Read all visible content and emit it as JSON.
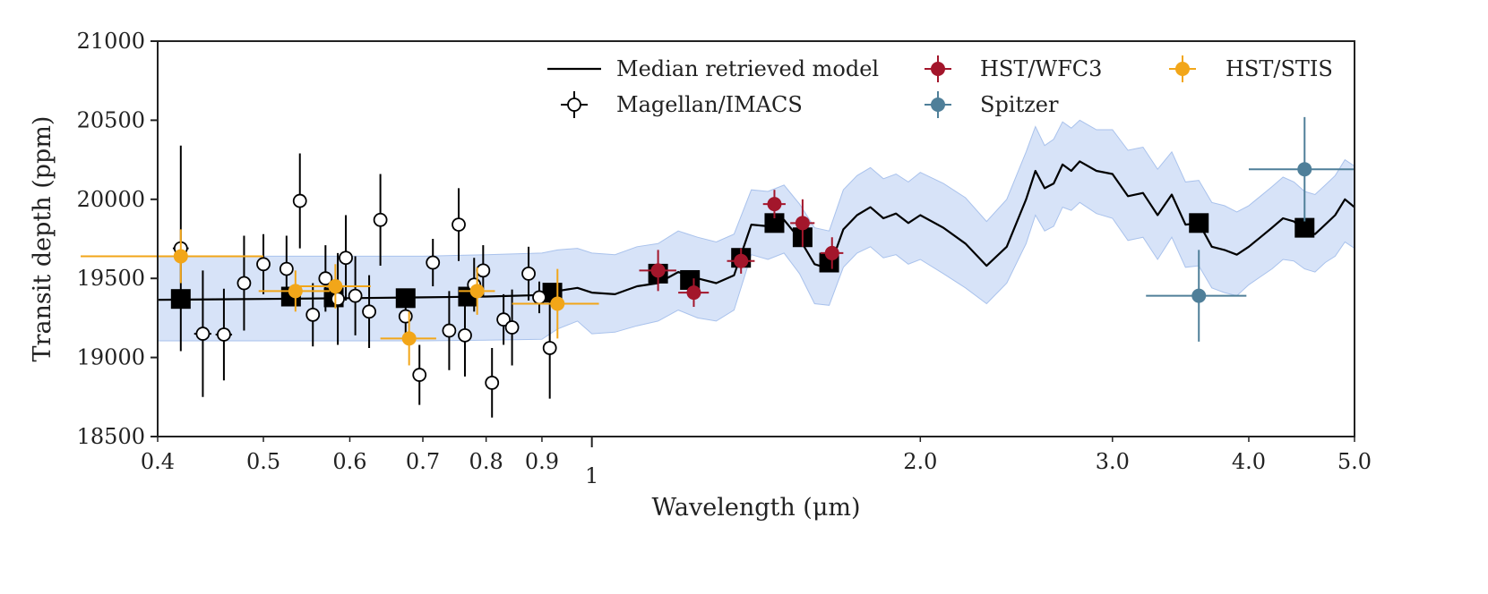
{
  "chart_data": {
    "type": "scatter",
    "xlabel": "Wavelength (μm)",
    "ylabel": "Transit depth (ppm)",
    "xscale": "log",
    "xlim": [
      0.4,
      5.0
    ],
    "ylim": [
      18500,
      21000
    ],
    "xticks": [
      {
        "value": 0.4,
        "label": "0.4"
      },
      {
        "value": 0.5,
        "label": "0.5"
      },
      {
        "value": 0.6,
        "label": "0.6"
      },
      {
        "value": 0.7,
        "label": "0.7"
      },
      {
        "value": 0.8,
        "label": "0.8"
      },
      {
        "value": 0.9,
        "label": "0.9"
      },
      {
        "value": 2.0,
        "label": "2.0"
      },
      {
        "value": 3.0,
        "label": "3.0"
      },
      {
        "value": 4.0,
        "label": "4.0"
      },
      {
        "value": 5.0,
        "label": "5.0"
      }
    ],
    "xticks_major": [
      {
        "value": 1.0,
        "label": "1"
      }
    ],
    "yticks": [
      18500,
      19000,
      19500,
      20000,
      20500,
      21000
    ],
    "legend": {
      "position": "top",
      "entries": [
        {
          "label": "Median retrieved model",
          "style": "line",
          "color": "#000000"
        },
        {
          "label": "Magellan/IMACS",
          "style": "open-circle",
          "color": "#000000"
        },
        {
          "label": "HST/WFC3",
          "style": "errorbar-dot",
          "color": "#a3162b"
        },
        {
          "label": "Spitzer",
          "style": "errorbar-dot",
          "color": "#4f7f99"
        },
        {
          "label": "HST/STIS",
          "style": "errorbar-dot",
          "color": "#f2a619"
        }
      ]
    },
    "model_line": {
      "name": "Median retrieved model",
      "color": "#000000",
      "x": [
        0.4,
        0.5,
        0.6,
        0.7,
        0.8,
        0.9,
        0.93,
        0.97,
        1.0,
        1.05,
        1.1,
        1.15,
        1.2,
        1.25,
        1.3,
        1.35,
        1.4,
        1.45,
        1.5,
        1.55,
        1.6,
        1.65,
        1.7,
        1.75,
        1.8,
        1.85,
        1.9,
        1.95,
        2.0,
        2.1,
        2.2,
        2.3,
        2.4,
        2.5,
        2.55,
        2.6,
        2.65,
        2.7,
        2.75,
        2.8,
        2.9,
        3.0,
        3.1,
        3.2,
        3.3,
        3.4,
        3.5,
        3.6,
        3.7,
        3.8,
        3.9,
        4.0,
        4.1,
        4.2,
        4.3,
        4.4,
        4.5,
        4.6,
        4.7,
        4.8,
        4.9,
        5.0
      ],
      "y": [
        19365,
        19370,
        19375,
        19380,
        19385,
        19395,
        19420,
        19440,
        19410,
        19400,
        19450,
        19470,
        19540,
        19500,
        19470,
        19520,
        19840,
        19830,
        19870,
        19750,
        19590,
        19560,
        19810,
        19900,
        19950,
        19880,
        19910,
        19850,
        19900,
        19820,
        19720,
        19580,
        19700,
        20000,
        20180,
        20070,
        20100,
        20220,
        20180,
        20240,
        20180,
        20160,
        20020,
        20040,
        19900,
        20030,
        19840,
        19850,
        19700,
        19680,
        19650,
        19700,
        19760,
        19820,
        19880,
        19860,
        19800,
        19780,
        19840,
        19900,
        20000,
        19950
      ]
    },
    "model_band": {
      "name": "Model 1-sigma range",
      "color": "#c9d9f5",
      "x": [
        0.4,
        0.5,
        0.6,
        0.7,
        0.8,
        0.9,
        0.93,
        0.97,
        1.0,
        1.05,
        1.1,
        1.15,
        1.2,
        1.25,
        1.3,
        1.35,
        1.4,
        1.45,
        1.5,
        1.55,
        1.6,
        1.65,
        1.7,
        1.75,
        1.8,
        1.85,
        1.9,
        1.95,
        2.0,
        2.1,
        2.2,
        2.3,
        2.4,
        2.5,
        2.55,
        2.6,
        2.65,
        2.7,
        2.75,
        2.8,
        2.9,
        3.0,
        3.1,
        3.2,
        3.3,
        3.4,
        3.5,
        3.6,
        3.7,
        3.8,
        3.9,
        4.0,
        4.1,
        4.2,
        4.3,
        4.4,
        4.5,
        4.6,
        4.7,
        4.8,
        4.9,
        5.0
      ],
      "lower": [
        19105,
        19105,
        19105,
        19105,
        19110,
        19115,
        19180,
        19230,
        19150,
        19160,
        19200,
        19230,
        19300,
        19250,
        19230,
        19300,
        19650,
        19620,
        19660,
        19530,
        19340,
        19330,
        19570,
        19660,
        19700,
        19630,
        19650,
        19590,
        19620,
        19530,
        19440,
        19340,
        19470,
        19720,
        19900,
        19800,
        19830,
        19950,
        19930,
        19980,
        19910,
        19880,
        19740,
        19760,
        19620,
        19760,
        19570,
        19580,
        19440,
        19410,
        19390,
        19460,
        19510,
        19560,
        19620,
        19610,
        19560,
        19540,
        19600,
        19640,
        19730,
        19690
      ],
      "upper": [
        19640,
        19640,
        19640,
        19640,
        19650,
        19660,
        19680,
        19690,
        19660,
        19650,
        19700,
        19720,
        19800,
        19760,
        19730,
        19780,
        20060,
        20050,
        20090,
        19970,
        19820,
        19800,
        20060,
        20150,
        20200,
        20130,
        20160,
        20110,
        20170,
        20100,
        20010,
        19860,
        20000,
        20300,
        20460,
        20340,
        20380,
        20490,
        20450,
        20500,
        20440,
        20440,
        20310,
        20330,
        20190,
        20300,
        20110,
        20120,
        19980,
        19960,
        19920,
        19960,
        20020,
        20080,
        20140,
        20110,
        20050,
        20030,
        20090,
        20150,
        20250,
        20210
      ]
    },
    "binned_model": {
      "name": "Binned model",
      "color": "#000000",
      "points": [
        {
          "x": 0.42,
          "y": 19370
        },
        {
          "x": 0.53,
          "y": 19385
        },
        {
          "x": 0.58,
          "y": 19380
        },
        {
          "x": 0.675,
          "y": 19375
        },
        {
          "x": 0.77,
          "y": 19385
        },
        {
          "x": 0.92,
          "y": 19410
        },
        {
          "x": 1.15,
          "y": 19530
        },
        {
          "x": 1.23,
          "y": 19490
        },
        {
          "x": 1.37,
          "y": 19630
        },
        {
          "x": 1.47,
          "y": 19850
        },
        {
          "x": 1.56,
          "y": 19760
        },
        {
          "x": 1.65,
          "y": 19600
        },
        {
          "x": 3.6,
          "y": 19850
        },
        {
          "x": 4.5,
          "y": 19820
        }
      ]
    },
    "series": [
      {
        "name": "Magellan/IMACS",
        "color": "#000000",
        "marker": "open-circle",
        "points": [
          {
            "x": 0.42,
            "y": 19690,
            "xerr": 0.007,
            "yerr": 650
          },
          {
            "x": 0.44,
            "y": 19150,
            "xerr": 0.008,
            "yerr": 400
          },
          {
            "x": 0.46,
            "y": 19145,
            "xerr": 0.008,
            "yerr": 290
          },
          {
            "x": 0.48,
            "y": 19470,
            "xerr": 0.004,
            "yerr": 300
          },
          {
            "x": 0.5,
            "y": 19590,
            "xerr": 0.004,
            "yerr": 190
          },
          {
            "x": 0.525,
            "y": 19560,
            "xerr": 0.004,
            "yerr": 210
          },
          {
            "x": 0.54,
            "y": 19990,
            "xerr": 0.004,
            "yerr": 300
          },
          {
            "x": 0.555,
            "y": 19270,
            "xerr": 0.004,
            "yerr": 200
          },
          {
            "x": 0.57,
            "y": 19500,
            "xerr": 0.004,
            "yerr": 210
          },
          {
            "x": 0.585,
            "y": 19370,
            "xerr": 0.004,
            "yerr": 290
          },
          {
            "x": 0.595,
            "y": 19630,
            "xerr": 0.004,
            "yerr": 270
          },
          {
            "x": 0.607,
            "y": 19390,
            "xerr": 0.004,
            "yerr": 250
          },
          {
            "x": 0.625,
            "y": 19290,
            "xerr": 0.004,
            "yerr": 230
          },
          {
            "x": 0.64,
            "y": 19870,
            "xerr": 0.004,
            "yerr": 290
          },
          {
            "x": 0.675,
            "y": 19260,
            "xerr": 0.004,
            "yerr": 140
          },
          {
            "x": 0.695,
            "y": 18890,
            "xerr": 0.004,
            "yerr": 190
          },
          {
            "x": 0.715,
            "y": 19600,
            "xerr": 0.004,
            "yerr": 150
          },
          {
            "x": 0.74,
            "y": 19170,
            "xerr": 0.004,
            "yerr": 250
          },
          {
            "x": 0.755,
            "y": 19840,
            "xerr": 0.004,
            "yerr": 230
          },
          {
            "x": 0.765,
            "y": 19140,
            "xerr": 0.004,
            "yerr": 260
          },
          {
            "x": 0.78,
            "y": 19460,
            "xerr": 0.004,
            "yerr": 170
          },
          {
            "x": 0.795,
            "y": 19550,
            "xerr": 0.004,
            "yerr": 160
          },
          {
            "x": 0.81,
            "y": 18840,
            "xerr": 0.004,
            "yerr": 220
          },
          {
            "x": 0.83,
            "y": 19240,
            "xerr": 0.004,
            "yerr": 160
          },
          {
            "x": 0.845,
            "y": 19190,
            "xerr": 0.004,
            "yerr": 240
          },
          {
            "x": 0.875,
            "y": 19530,
            "xerr": 0.004,
            "yerr": 170
          },
          {
            "x": 0.895,
            "y": 19380,
            "xerr": 0.004,
            "yerr": 100
          },
          {
            "x": 0.915,
            "y": 19060,
            "xerr": 0.004,
            "yerr": 320
          }
        ]
      },
      {
        "name": "HST/STIS",
        "color": "#f2a619",
        "marker": "dot",
        "points": [
          {
            "x": 0.42,
            "y": 19640,
            "xerr": 0.08,
            "yerr": 170
          },
          {
            "x": 0.535,
            "y": 19420,
            "xerr": 0.04,
            "yerr": 130
          },
          {
            "x": 0.582,
            "y": 19450,
            "xerr": 0.045,
            "yerr": 140
          },
          {
            "x": 0.68,
            "y": 19120,
            "xerr": 0.04,
            "yerr": 170
          },
          {
            "x": 0.785,
            "y": 19420,
            "xerr": 0.03,
            "yerr": 150
          },
          {
            "x": 0.93,
            "y": 19340,
            "xerr": 0.085,
            "yerr": 220
          }
        ]
      },
      {
        "name": "HST/WFC3",
        "color": "#a3162b",
        "marker": "dot",
        "points": [
          {
            "x": 1.15,
            "y": 19550,
            "xerr": 0.045,
            "yerr": 130
          },
          {
            "x": 1.24,
            "y": 19410,
            "xerr": 0.04,
            "yerr": 90
          },
          {
            "x": 1.37,
            "y": 19610,
            "xerr": 0.04,
            "yerr": 80
          },
          {
            "x": 1.47,
            "y": 19970,
            "xerr": 0.035,
            "yerr": 90
          },
          {
            "x": 1.56,
            "y": 19850,
            "xerr": 0.04,
            "yerr": 150
          },
          {
            "x": 1.66,
            "y": 19660,
            "xerr": 0.04,
            "yerr": 100
          }
        ]
      },
      {
        "name": "Spitzer",
        "color": "#4f7f99",
        "marker": "dot",
        "points": [
          {
            "x": 3.6,
            "y": 19390,
            "xerr": 0.38,
            "yerr": 290
          },
          {
            "x": 4.5,
            "y": 20190,
            "xerr": 0.5,
            "yerr": 330
          }
        ]
      }
    ]
  }
}
